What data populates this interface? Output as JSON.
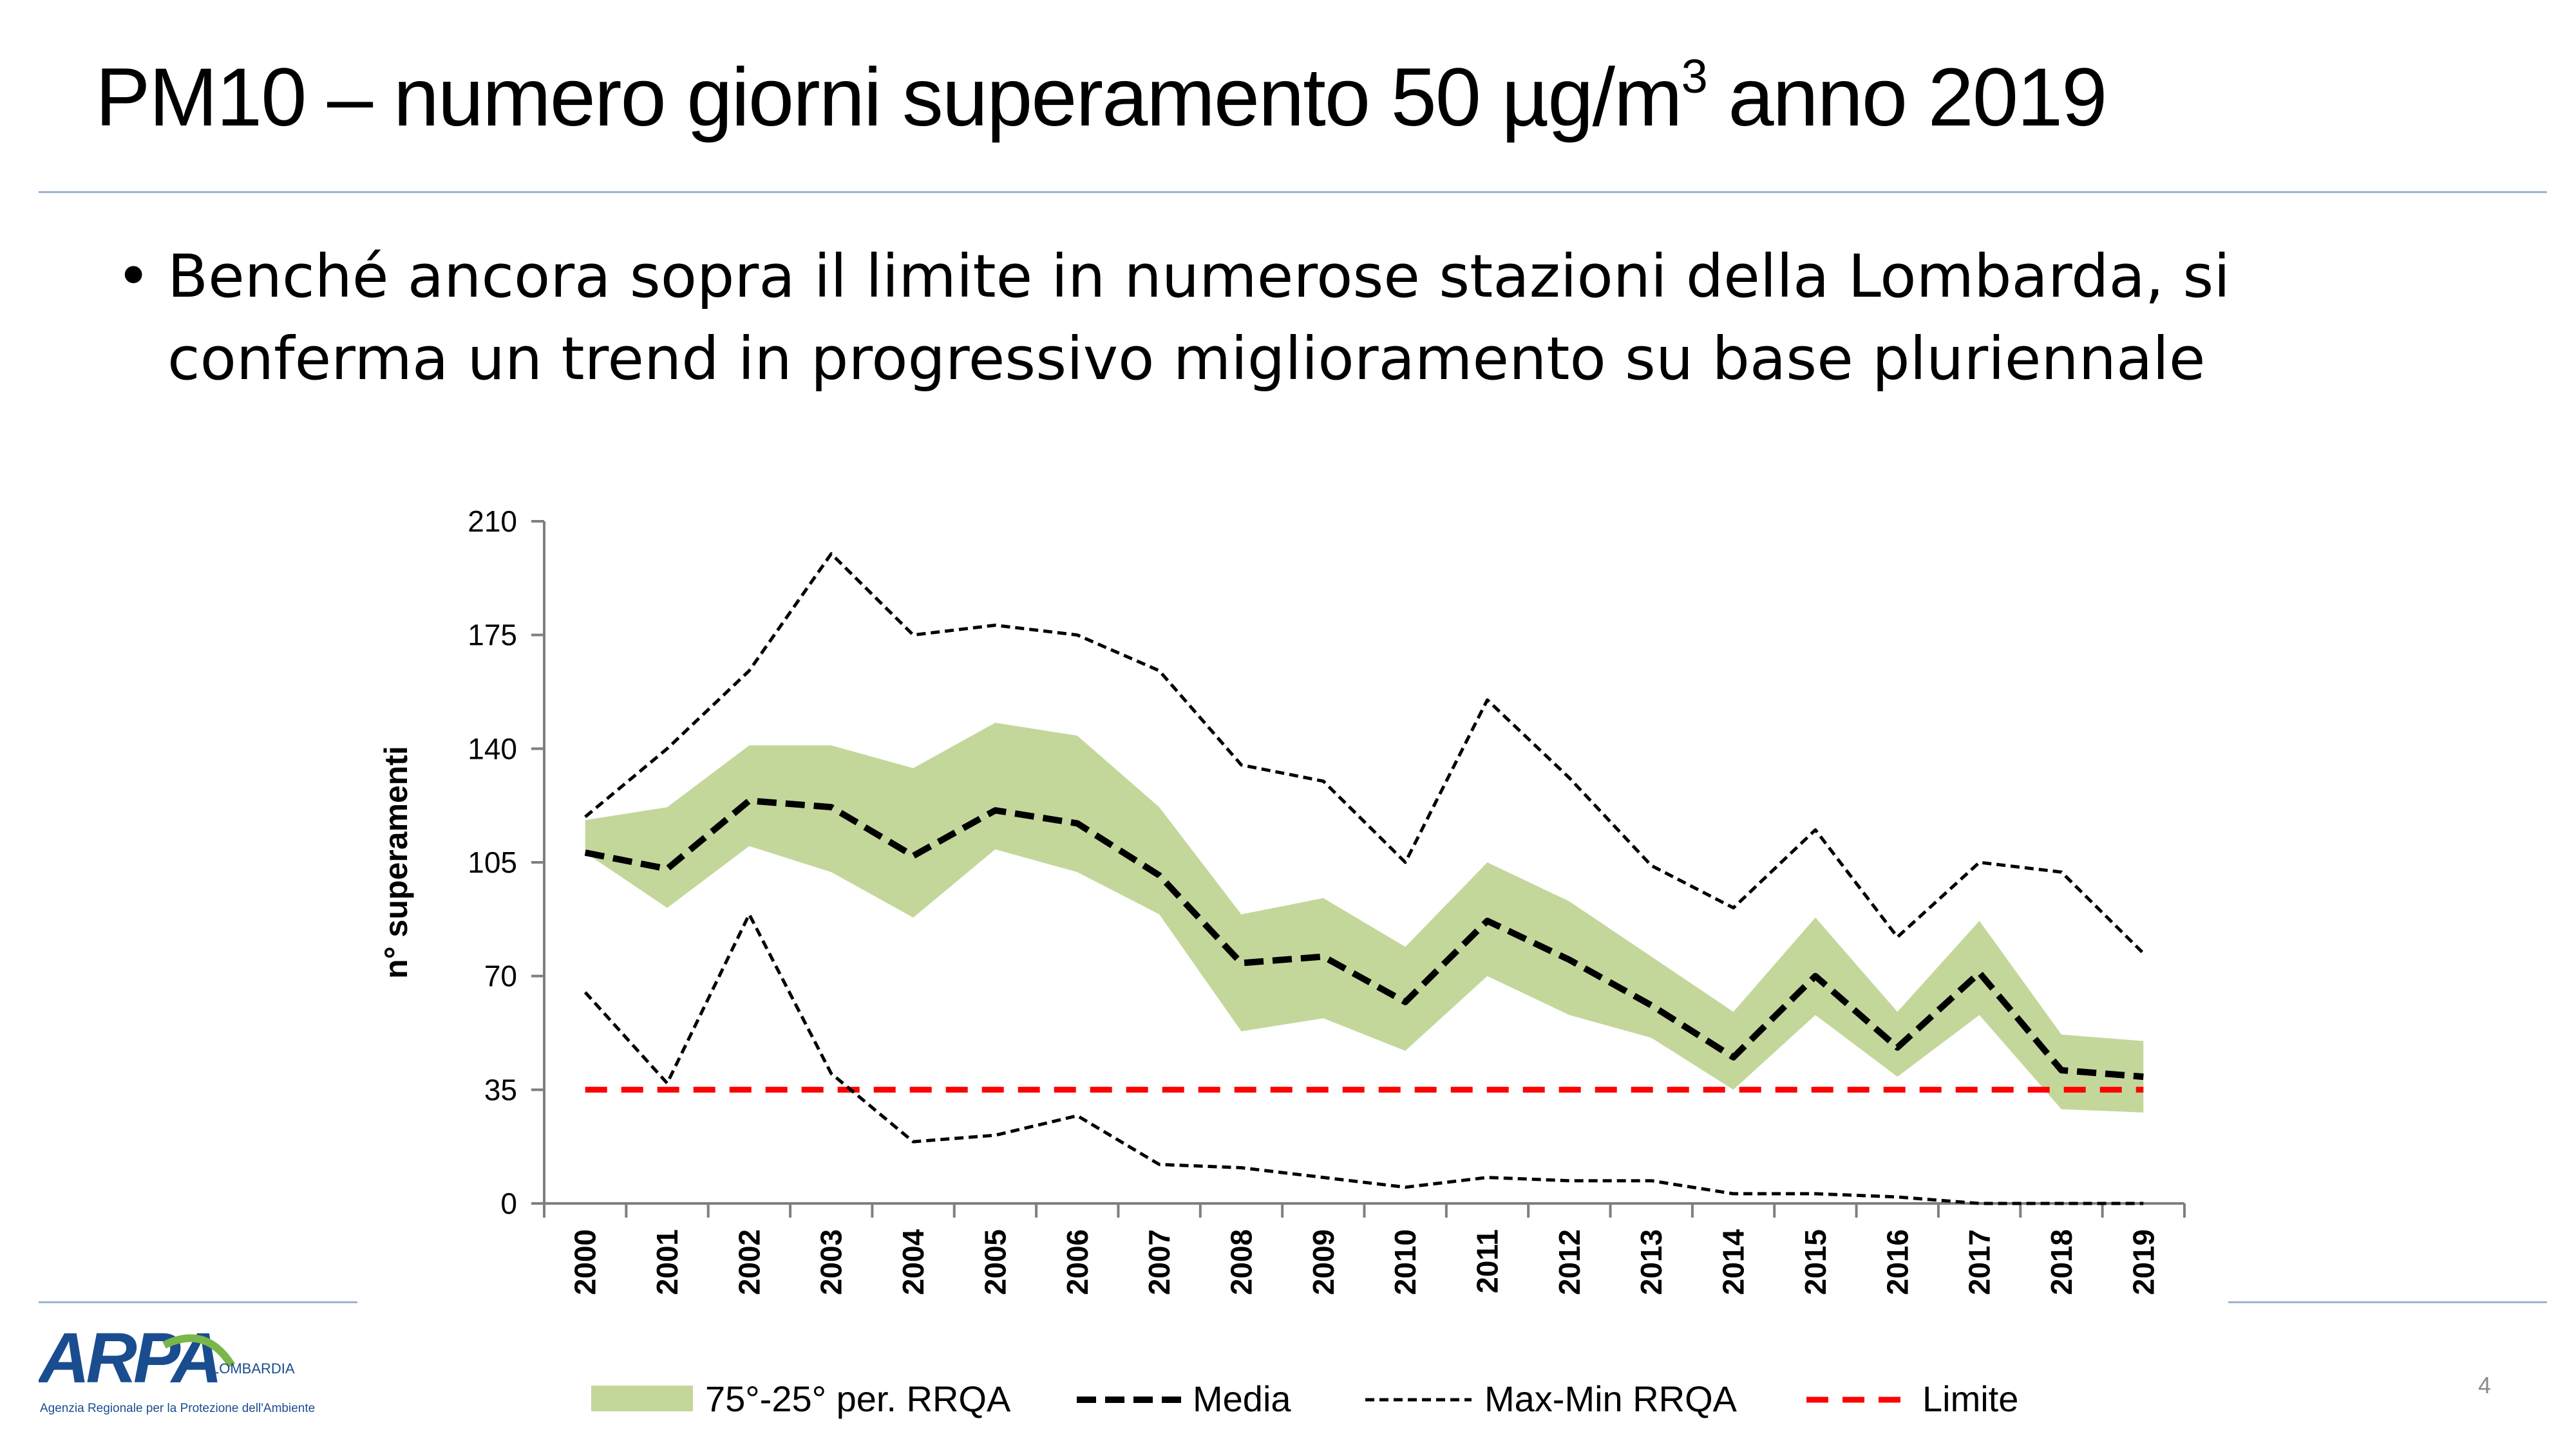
{
  "slide": {
    "title_main": "PM10 – numero giorni superamento 50 µg/m",
    "title_sup": "3",
    "title_end": " anno 2019",
    "bullet_symbol": "•",
    "bullet": "Benché ancora sopra il limite in numerose stazioni della Lombarda, si conferma un trend in progressivo miglioramento su base pluriennale",
    "page_number": "4"
  },
  "logo": {
    "letters": "ARPA",
    "region": "LOMBARDIA",
    "tagline": "Agenzia Regionale per la Protezione dell'Ambiente"
  },
  "colors": {
    "band": "#c4d79b",
    "media": "#000000",
    "maxmin": "#000000",
    "limite": "#ff0000",
    "rule": "#9db4d2",
    "logo_blue": "#1a4d8f",
    "logo_green": "#7ab648"
  },
  "chart_data": {
    "type": "line",
    "xlabel": "",
    "ylabel": "n° superamenti",
    "ylim": [
      0,
      210
    ],
    "yticks": [
      0,
      35,
      70,
      105,
      140,
      175,
      210
    ],
    "grid": false,
    "legend_position": "bottom",
    "x": [
      "2000",
      "2001",
      "2002",
      "2003",
      "2004",
      "2005",
      "2006",
      "2007",
      "2008",
      "2009",
      "2010",
      "2011",
      "2012",
      "2013",
      "2014",
      "2015",
      "2016",
      "2017",
      "2018",
      "2019"
    ],
    "band": {
      "name": "75°-25° per. RRQA",
      "upper": [
        118,
        122,
        141,
        141,
        134,
        148,
        144,
        122,
        89,
        94,
        79,
        105,
        93,
        76,
        59,
        88,
        59,
        87,
        52,
        50
      ],
      "lower": [
        108,
        91,
        110,
        102,
        88,
        109,
        102,
        89,
        53,
        57,
        47,
        70,
        58,
        51,
        35,
        58,
        39,
        58,
        29,
        28
      ]
    },
    "series": [
      {
        "name": "Media",
        "values": [
          108,
          103,
          124,
          122,
          107,
          121,
          117,
          101,
          74,
          76,
          62,
          87,
          75,
          61,
          45,
          70,
          48,
          71,
          41,
          39
        ]
      },
      {
        "name": "Max-Min RRQA",
        "role": "max",
        "values": [
          119,
          140,
          164,
          200,
          175,
          178,
          175,
          164,
          135,
          130,
          105,
          155,
          131,
          104,
          91,
          115,
          82,
          105,
          102,
          77
        ]
      },
      {
        "name": "Max-Min RRQA",
        "role": "min",
        "values": [
          65,
          37,
          89,
          40,
          19,
          21,
          27,
          12,
          11,
          8,
          5,
          8,
          7,
          7,
          3,
          3,
          2,
          0,
          0,
          0
        ]
      },
      {
        "name": "Limite",
        "values": [
          35,
          35,
          35,
          35,
          35,
          35,
          35,
          35,
          35,
          35,
          35,
          35,
          35,
          35,
          35,
          35,
          35,
          35,
          35,
          35
        ]
      }
    ],
    "legend": [
      "75°-25° per. RRQA",
      "Media",
      "Max-Min RRQA",
      "Limite"
    ]
  }
}
